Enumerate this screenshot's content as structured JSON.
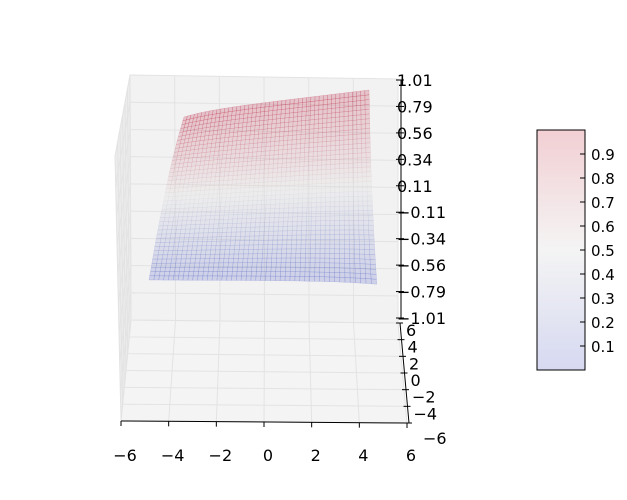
{
  "chart_data": {
    "type": "surface",
    "title": "",
    "xlabel": "",
    "ylabel": "",
    "zlabel": "",
    "x_ticks": [
      "−6",
      "−4",
      "−2",
      "0",
      "2",
      "4",
      "6"
    ],
    "y_ticks": [
      "−6",
      "−4",
      "−2",
      "0",
      "2",
      "4",
      "6"
    ],
    "z_ticks": [
      "−1.01",
      "−0.79",
      "−0.56",
      "−0.34",
      "−0.11",
      "0.11",
      "0.34",
      "0.56",
      "0.79",
      "1.01"
    ],
    "xlim": [
      -6,
      6
    ],
    "ylim": [
      -6,
      6
    ],
    "zlim": [
      -1.01,
      1.01
    ],
    "surface_value_range": [
      0,
      1
    ],
    "colormap": "coolwarm",
    "alpha": 0.2,
    "grid": true,
    "colorbar": {
      "placement": "right",
      "range": [
        0,
        1
      ],
      "ticks": [
        "0.1",
        "0.2",
        "0.3",
        "0.4",
        "0.5",
        "0.6",
        "0.7",
        "0.8",
        "0.9"
      ]
    },
    "colors": {
      "low": "#3b4cc0",
      "mid": "#dddddd",
      "high": "#b40426",
      "pane": "#f2f2f2",
      "gridline": "#e3e3e3"
    }
  }
}
